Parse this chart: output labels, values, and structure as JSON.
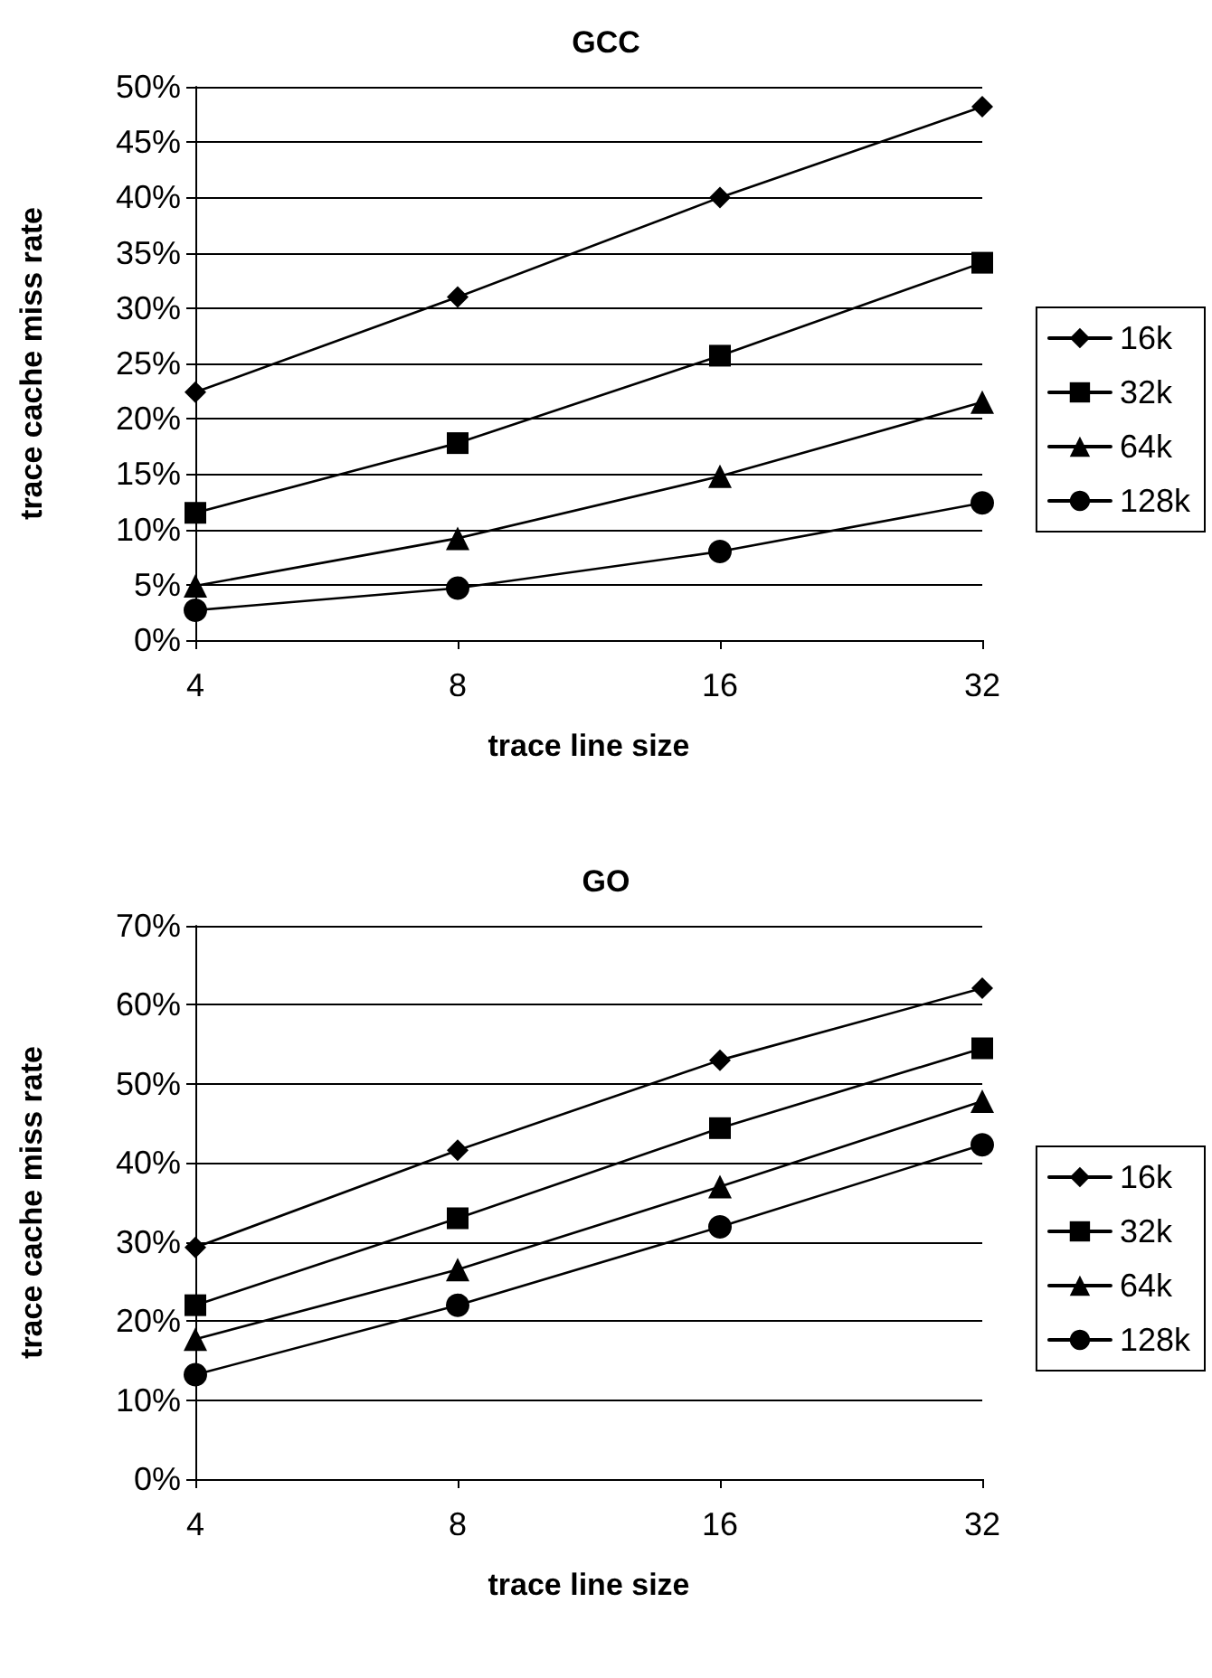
{
  "chart_data": [
    {
      "type": "line",
      "title": "GCC",
      "xlabel": "trace line size",
      "ylabel": "trace cache miss rate",
      "categories": [
        "4",
        "8",
        "16",
        "32"
      ],
      "ylim": [
        0,
        50
      ],
      "yticks": [
        {
          "value": 0,
          "label": "0%"
        },
        {
          "value": 5,
          "label": "5%"
        },
        {
          "value": 10,
          "label": "10%"
        },
        {
          "value": 15,
          "label": "15%"
        },
        {
          "value": 20,
          "label": "20%"
        },
        {
          "value": 25,
          "label": "25%"
        },
        {
          "value": 30,
          "label": "30%"
        },
        {
          "value": 35,
          "label": "35%"
        },
        {
          "value": 40,
          "label": "40%"
        },
        {
          "value": 45,
          "label": "45%"
        },
        {
          "value": 50,
          "label": "50%"
        }
      ],
      "grid": "y",
      "legend": "right",
      "line_style": "solid",
      "series": [
        {
          "name": "16k",
          "color": "#000000",
          "marker": "diamond",
          "values": [
            22.4,
            31,
            40,
            48.2
          ]
        },
        {
          "name": "32k",
          "color": "#000000",
          "marker": "square",
          "values": [
            11.5,
            17.8,
            25.7,
            34.1
          ]
        },
        {
          "name": "64k",
          "color": "#000000",
          "marker": "triangle",
          "values": [
            4.9,
            9.2,
            14.8,
            21.5
          ]
        },
        {
          "name": "128k",
          "color": "#000000",
          "marker": "circle",
          "values": [
            2.7,
            4.7,
            8,
            12.4
          ]
        }
      ]
    },
    {
      "type": "line",
      "title": "GO",
      "xlabel": "trace line size",
      "ylabel": "trace cache miss rate",
      "categories": [
        "4",
        "8",
        "16",
        "32"
      ],
      "ylim": [
        0,
        70
      ],
      "yticks": [
        {
          "value": 0,
          "label": "0%"
        },
        {
          "value": 10,
          "label": "10%"
        },
        {
          "value": 20,
          "label": "20%"
        },
        {
          "value": 30,
          "label": "30%"
        },
        {
          "value": 40,
          "label": "40%"
        },
        {
          "value": 50,
          "label": "50%"
        },
        {
          "value": 60,
          "label": "60%"
        },
        {
          "value": 70,
          "label": "70%"
        }
      ],
      "grid": "y",
      "legend": "right",
      "line_style": "solid",
      "series": [
        {
          "name": "16k",
          "color": "#000000",
          "marker": "diamond",
          "values": [
            29.3,
            41.6,
            53,
            62.1
          ]
        },
        {
          "name": "32k",
          "color": "#000000",
          "marker": "square",
          "values": [
            22,
            33,
            44.4,
            54.5
          ]
        },
        {
          "name": "64k",
          "color": "#000000",
          "marker": "triangle",
          "values": [
            17.7,
            26.5,
            37,
            47.8
          ]
        },
        {
          "name": "128k",
          "color": "#000000",
          "marker": "circle",
          "values": [
            13.2,
            22,
            31.9,
            42.3
          ]
        }
      ]
    }
  ]
}
